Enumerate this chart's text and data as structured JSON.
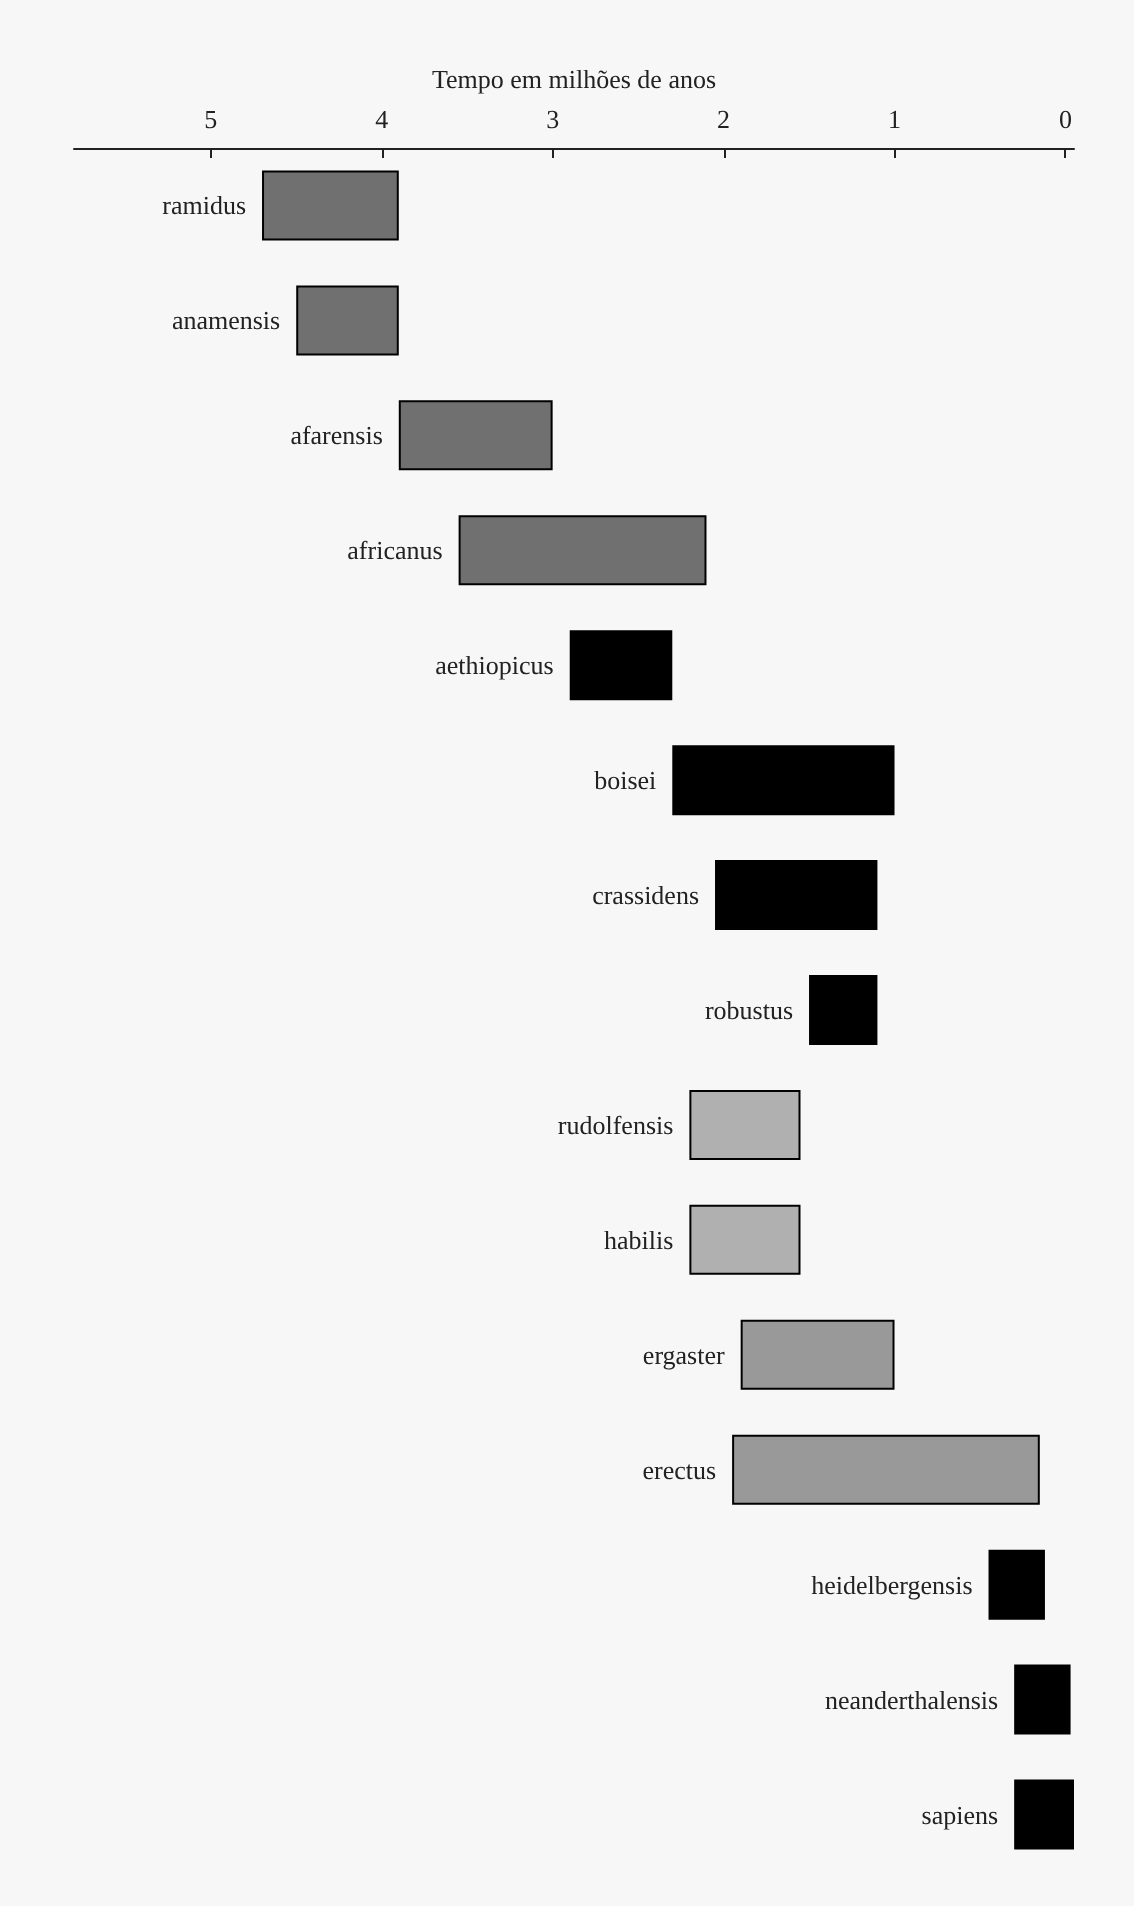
{
  "chart_data": {
    "type": "bar",
    "orientation": "horizontal",
    "xlabel": "Tempo em milhões de anos",
    "categories": [
      "ramidus",
      "anamensis",
      "afarensis",
      "africanus",
      "aethiopicus",
      "boisei",
      "crassidens",
      "robustus",
      "rudolfensis",
      "habilis",
      "ergaster",
      "erectus",
      "heidelbergensis",
      "neanderthalensis",
      "sapiens"
    ],
    "base": [
      3.9,
      3.9,
      3.0,
      2.1,
      2.3,
      1.0,
      1.1,
      1.1,
      1.55,
      1.55,
      1.0,
      0.15,
      0.12,
      -0.03,
      -0.05
    ],
    "values": [
      0.8,
      0.6,
      0.9,
      1.45,
      0.6,
      1.3,
      0.95,
      0.4,
      0.65,
      0.65,
      0.9,
      1.8,
      0.33,
      0.33,
      0.35
    ],
    "colors": [
      "#707070",
      "#707070",
      "#707070",
      "#707070",
      "#000000",
      "#000000",
      "#000000",
      "#000000",
      "#b0b0b0",
      "#b0b0b0",
      "#999999",
      "#999999",
      "#000000",
      "#000000",
      "#000000"
    ],
    "xlim": [
      5.8,
      -0.05
    ],
    "xticks": [
      5,
      4,
      3,
      2,
      1,
      0
    ]
  }
}
